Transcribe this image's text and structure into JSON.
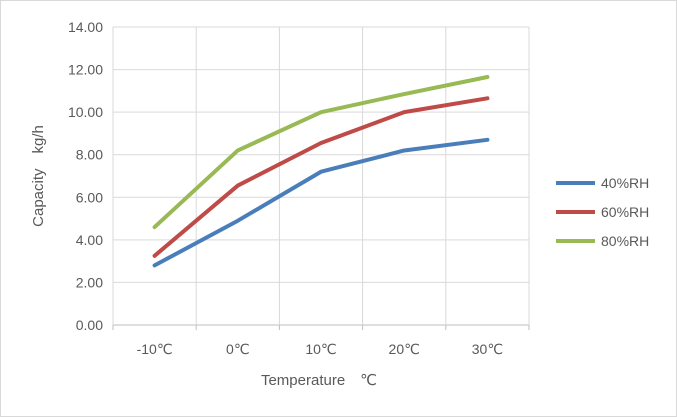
{
  "chart_data": {
    "type": "line",
    "title": "",
    "xlabel": "Temperature　℃",
    "ylabel": "Capacity　kg/h",
    "categories": [
      "-10℃",
      "0℃",
      "10℃",
      "20℃",
      "30℃"
    ],
    "ylim": [
      0,
      14
    ],
    "ytick_values": [
      0,
      2,
      4,
      6,
      8,
      10,
      12,
      14
    ],
    "ytick_labels": [
      "0.00",
      "2.00",
      "4.00",
      "6.00",
      "8.00",
      "10.00",
      "12.00",
      "14.00"
    ],
    "grid": true,
    "legend_position": "right",
    "series": [
      {
        "name": "40%RH",
        "color": "#4a7ebb",
        "values": [
          2.8,
          4.9,
          7.2,
          8.2,
          8.7
        ]
      },
      {
        "name": "60%RH",
        "color": "#be4b48",
        "values": [
          3.25,
          6.55,
          8.55,
          10.0,
          10.65
        ]
      },
      {
        "name": "80%RH",
        "color": "#98b954",
        "values": [
          4.6,
          8.2,
          10.0,
          10.85,
          11.65
        ]
      }
    ]
  }
}
